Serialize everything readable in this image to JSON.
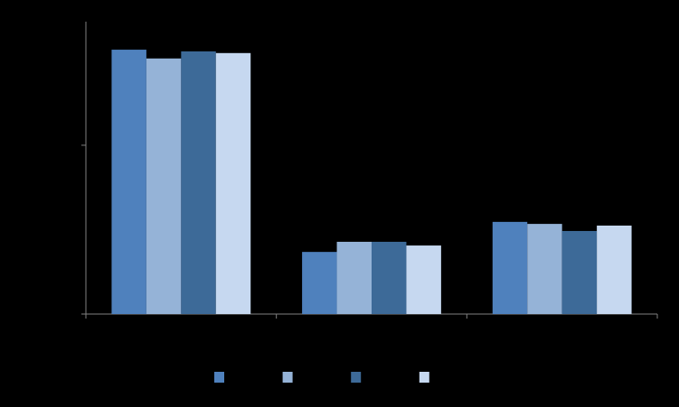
{
  "chart_data": {
    "type": "bar",
    "categories": [
      null,
      null,
      null
    ],
    "series": [
      {
        "color": "#4f81bd",
        "values": [
          78.3,
          18.4,
          27.3
        ]
      },
      {
        "color": "#95b3d7",
        "values": [
          75.7,
          21.4,
          26.7
        ]
      },
      {
        "color": "#3d6a98",
        "values": [
          77.8,
          21.4,
          24.6
        ]
      },
      {
        "color": "#c6d8f0",
        "values": [
          77.3,
          20.3,
          26.2
        ]
      }
    ],
    "ylim": [
      0,
      86.6
    ],
    "yticks": [
      0,
      50
    ]
  }
}
